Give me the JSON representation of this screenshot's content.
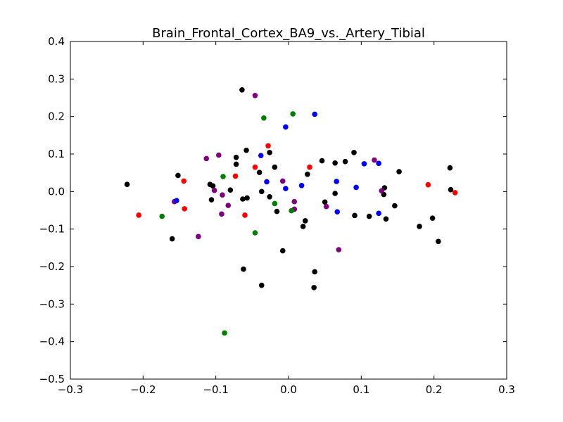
{
  "chart_data": {
    "type": "scatter",
    "title": "Brain_Frontal_Cortex_BA9_vs._Artery_Tibial",
    "xlabel": "",
    "ylabel": "",
    "xlim": [
      -0.3,
      0.3
    ],
    "ylim": [
      -0.5,
      0.4
    ],
    "x_ticks": [
      -0.3,
      -0.2,
      -0.1,
      0.0,
      0.1,
      0.2,
      0.3
    ],
    "x_tick_labels": [
      "−0.3",
      "−0.2",
      "−0.1",
      "0.0",
      "0.1",
      "0.2",
      "0.3"
    ],
    "y_ticks": [
      -0.5,
      -0.4,
      -0.3,
      -0.2,
      -0.1,
      0.0,
      0.1,
      0.2,
      0.3,
      0.4
    ],
    "y_tick_labels": [
      "−0.5",
      "−0.4",
      "−0.3",
      "−0.2",
      "−0.1",
      "0.0",
      "0.1",
      "0.2",
      "0.3",
      "0.4"
    ],
    "grid": false,
    "legend": false,
    "series": [
      {
        "color": "#000000",
        "points": [
          [
            -0.222,
            0.019
          ],
          [
            -0.152,
            0.043
          ],
          [
            -0.16,
            -0.126
          ],
          [
            -0.108,
            0.019
          ],
          [
            -0.104,
            0.015
          ],
          [
            -0.106,
            -0.022
          ],
          [
            -0.08,
            0.004
          ],
          [
            -0.072,
            0.091
          ],
          [
            -0.072,
            0.073
          ],
          [
            -0.064,
            0.271
          ],
          [
            -0.058,
            0.11
          ],
          [
            -0.057,
            -0.017
          ],
          [
            -0.063,
            -0.02
          ],
          [
            -0.04,
            0.051
          ],
          [
            -0.037,
            0.0
          ],
          [
            -0.026,
            0.104
          ],
          [
            -0.026,
            -0.014
          ],
          [
            -0.019,
            0.065
          ],
          [
            -0.016,
            -0.053
          ],
          [
            -0.008,
            -0.158
          ],
          [
            -0.062,
            -0.207
          ],
          [
            -0.037,
            -0.25
          ],
          [
            0.02,
            -0.093
          ],
          [
            0.023,
            -0.078
          ],
          [
            0.026,
            0.046
          ],
          [
            0.035,
            -0.256
          ],
          [
            0.036,
            -0.214
          ],
          [
            0.046,
            0.082
          ],
          [
            0.05,
            -0.028
          ],
          [
            0.064,
            0.076
          ],
          [
            0.064,
            -0.005
          ],
          [
            0.078,
            0.08
          ],
          [
            0.09,
            0.104
          ],
          [
            0.091,
            -0.064
          ],
          [
            0.111,
            -0.066
          ],
          [
            0.131,
            -0.008
          ],
          [
            0.132,
            0.01
          ],
          [
            0.134,
            -0.073
          ],
          [
            0.146,
            -0.038
          ],
          [
            0.152,
            0.053
          ],
          [
            0.18,
            -0.093
          ],
          [
            0.198,
            -0.071
          ],
          [
            0.206,
            -0.133
          ],
          [
            0.222,
            0.063
          ],
          [
            0.223,
            0.005
          ]
        ]
      },
      {
        "color": "#800080",
        "points": [
          [
            -0.046,
            0.256
          ],
          [
            -0.096,
            0.097
          ],
          [
            -0.113,
            0.088
          ],
          [
            -0.102,
            0.003
          ],
          [
            -0.091,
            -0.009
          ],
          [
            -0.083,
            -0.037
          ],
          [
            -0.092,
            -0.06
          ],
          [
            -0.124,
            -0.12
          ],
          [
            -0.157,
            -0.027
          ],
          [
            -0.008,
            0.028
          ],
          [
            0.008,
            -0.027
          ],
          [
            0.008,
            -0.047
          ],
          [
            0.052,
            -0.04
          ],
          [
            0.069,
            -0.155
          ],
          [
            0.118,
            0.084
          ],
          [
            0.128,
            0.002
          ]
        ]
      },
      {
        "color": "#ff0000",
        "points": [
          [
            -0.206,
            -0.063
          ],
          [
            -0.144,
            0.028
          ],
          [
            -0.143,
            -0.046
          ],
          [
            -0.073,
            0.041
          ],
          [
            -0.06,
            -0.063
          ],
          [
            -0.046,
            0.065
          ],
          [
            -0.028,
            0.122
          ],
          [
            0.029,
            0.065
          ],
          [
            0.192,
            0.018
          ],
          [
            0.229,
            -0.003
          ]
        ]
      },
      {
        "color": "#0000ff",
        "points": [
          [
            -0.154,
            -0.024
          ],
          [
            -0.038,
            0.096
          ],
          [
            -0.03,
            0.026
          ],
          [
            -0.004,
            0.172
          ],
          [
            -0.004,
            0.008
          ],
          [
            0.018,
            0.016
          ],
          [
            0.036,
            0.206
          ],
          [
            0.066,
            0.027
          ],
          [
            0.067,
            -0.054
          ],
          [
            0.093,
            0.011
          ],
          [
            0.104,
            0.074
          ],
          [
            0.124,
            0.075
          ],
          [
            0.124,
            -0.058
          ]
        ]
      },
      {
        "color": "#008000",
        "points": [
          [
            -0.174,
            -0.066
          ],
          [
            -0.09,
            0.04
          ],
          [
            -0.088,
            -0.377
          ],
          [
            -0.034,
            0.196
          ],
          [
            -0.046,
            -0.11
          ],
          [
            -0.019,
            -0.032
          ],
          [
            0.004,
            -0.051
          ],
          [
            0.006,
            0.207
          ]
        ]
      }
    ]
  }
}
